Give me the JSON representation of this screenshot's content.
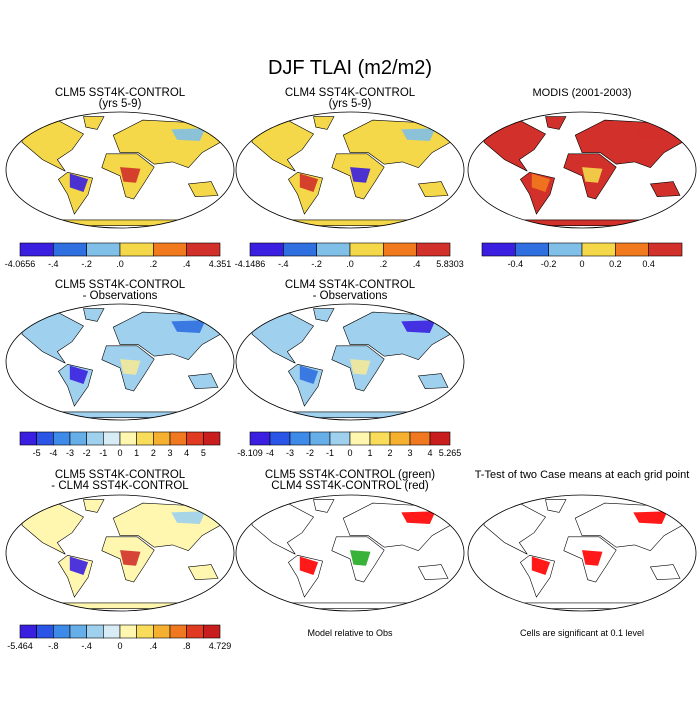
{
  "title": "DJF TLAI (m2/m2)",
  "panels": [
    {
      "title": [
        "CLM5 SST4K-CONTROL",
        "(yrs 5-9)"
      ],
      "land_color": "#f4d84a",
      "patch_colors": [
        "#3a1fe0",
        "#d2302a",
        "#80c0e8"
      ],
      "colorbar": {
        "colors": [
          "#3a1fe0",
          "#2f6fe0",
          "#80c0e8",
          "#f4d84a",
          "#f27a1e",
          "#d2302a"
        ],
        "labels": [
          "-4.0656",
          "-.4",
          "-.2",
          ".0",
          ".2",
          ".4",
          "4.351"
        ]
      }
    },
    {
      "title": [
        "CLM4 SST4K-CONTROL",
        "(yrs 5-9)"
      ],
      "land_color": "#f4d84a",
      "patch_colors": [
        "#d2302a",
        "#3a1fe0",
        "#80c0e8"
      ],
      "colorbar": {
        "colors": [
          "#3a1fe0",
          "#2f6fe0",
          "#80c0e8",
          "#f4d84a",
          "#f27a1e",
          "#d2302a"
        ],
        "labels": [
          "-4.1486",
          "-.4",
          "-.2",
          ".0",
          ".2",
          ".4",
          "5.8303"
        ]
      }
    },
    {
      "title": [
        "MODIS (2001-2003)"
      ],
      "land_color": "#d2302a",
      "patch_colors": [
        "#f27a1e",
        "#f4d84a",
        "#d2302a"
      ],
      "colorbar": {
        "colors": [
          "#3a1fe0",
          "#2f6fe0",
          "#80c0e8",
          "#f4d84a",
          "#f27a1e",
          "#d2302a"
        ],
        "labels": [
          "-0.4",
          "-0.2",
          "0",
          "0.2",
          "0.4"
        ]
      }
    },
    {
      "title": [
        "CLM5 SST4K-CONTROL",
        "- Observations"
      ],
      "land_color": "#9fd0ee",
      "patch_colors": [
        "#3a1fe0",
        "#f4e89a",
        "#2f6fe0"
      ],
      "colorbar": {
        "colors": [
          "#3a1fe0",
          "#2a55e6",
          "#3e8ae8",
          "#66aee8",
          "#9fd0ee",
          "#d8ecf6",
          "#fff6b0",
          "#f8dc5a",
          "#f5b030",
          "#f07820",
          "#e03a20",
          "#c81e1e"
        ],
        "labels": [
          "-5",
          "-4",
          "-3",
          "-2",
          "-1",
          "0",
          "1",
          "2",
          "3",
          "4",
          "5"
        ]
      }
    },
    {
      "title": [
        "CLM4 SST4K-CONTROL",
        "- Observations"
      ],
      "land_color": "#9fd0ee",
      "patch_colors": [
        "#2f6fe0",
        "#f4e89a",
        "#3a1fe0"
      ],
      "colorbar": {
        "colors": [
          "#3a1fe0",
          "#2a55e6",
          "#3e8ae8",
          "#66aee8",
          "#9fd0ee",
          "#fff6b0",
          "#f8dc5a",
          "#f5b030",
          "#f07820",
          "#c81e1e"
        ],
        "labels": [
          "-8.109",
          "-4",
          "-3",
          "-2",
          "-1",
          "0",
          "1",
          "2",
          "3",
          "4",
          "5.265"
        ]
      }
    },
    {
      "title": [
        "CLM5 SST4K-CONTROL",
        "- CLM4 SST4K-CONTROL"
      ],
      "land_color": "#fff6b0",
      "patch_colors": [
        "#3a1fe0",
        "#d2302a",
        "#9fd0ee"
      ],
      "colorbar": {
        "colors": [
          "#3a1fe0",
          "#2a55e6",
          "#3e8ae8",
          "#66aee8",
          "#9fd0ee",
          "#d8ecf6",
          "#fff6b0",
          "#f8dc5a",
          "#f5b030",
          "#f07820",
          "#e03a20",
          "#c81e1e"
        ],
        "labels": [
          "-5.464",
          "-.8",
          "-.4",
          "0",
          ".4",
          ".8",
          "4.729"
        ]
      }
    },
    {
      "title": [
        "CLM5 SST4K-CONTROL (green)",
        "CLM4 SST4K-CONTROL (red)"
      ],
      "land_color": "#ffffff",
      "patch_colors": [
        "#ff0000",
        "#22aa22",
        "#ff0000"
      ],
      "caption": "Model relative to Obs"
    },
    {
      "title": [
        "T-Test of two Case means at each grid point"
      ],
      "land_color": "#ffffff",
      "patch_colors": [
        "#ff0000",
        "#ff0000",
        "#ff0000"
      ],
      "caption": "Cells are significant at 0.1 level"
    }
  ]
}
